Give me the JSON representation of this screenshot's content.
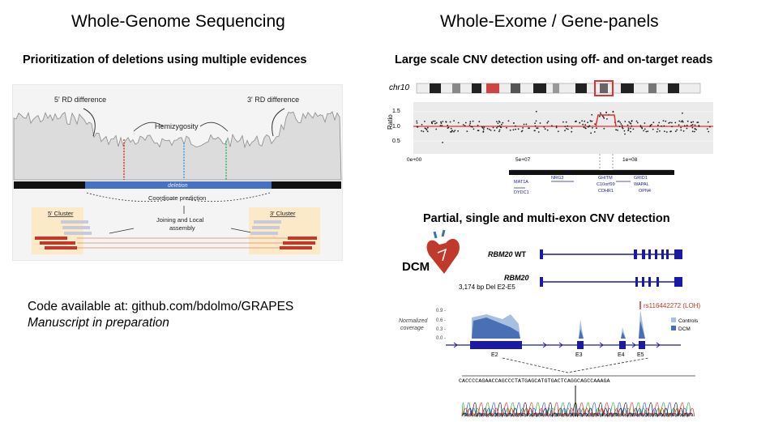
{
  "left": {
    "title": "Whole-Genome Sequencing",
    "subtitle": "Prioritization of deletions using multiple evidences",
    "figure": {
      "rd5": "5' RD difference",
      "rd3": "3' RD difference",
      "hemi": "Hemizygosity",
      "deletion": "deletion",
      "coord": "Coordinate prediction",
      "cluster5": "5' Cluster",
      "cluster3": "3' Cluster",
      "assembly1": "Joining and Local",
      "assembly2": "assembly"
    },
    "code_line": "Code available at: github.com/bdolmo/GRAPES",
    "manuscript": "Manuscript in preparation"
  },
  "right": {
    "title": "Whole-Exome / Gene-panels",
    "subtitle1": "Large scale CNV detection using off- and on-target reads",
    "subtitle2": "Partial, single and multi-exon CNV detection",
    "cnv_plot": {
      "chrom": "chr10",
      "ylabel": "Ratio",
      "yticks": [
        "1.5",
        "1.0",
        "0.5"
      ],
      "xticks": [
        "0e+00",
        "5e+07",
        "1e+08"
      ],
      "genes": [
        "MAT1A",
        "DYDC1",
        "NRG3",
        "GHITM",
        "C10orf99",
        "CDHR1",
        "GRID1",
        "WAPAL",
        "OPN4"
      ]
    },
    "exon_plot": {
      "dcm": "DCM",
      "gene1": "RBM20",
      "wt": " WT",
      "gene2": "RBM20",
      "del": "3,174 bp Del E2-E5",
      "snp": "rs116442272 (LOH)",
      "norm1": "Normalized",
      "norm2": "coverage",
      "yticks": [
        "0.9 -",
        "0.6 -",
        "0.3 -",
        "0.0 -"
      ],
      "legend_controls": "Controls",
      "legend_dcm": "DCM",
      "exons": [
        "E2",
        "E3",
        "E4",
        "E5"
      ],
      "sequence": "CACCCCAGAACCAGCCCTATGAGCATGTGACTCAGGCAGCCAAAGA"
    }
  },
  "colors": {
    "deletion": "#4472c4",
    "gene": "#1a1aa6",
    "ratio": "#e03030",
    "cluster_fill": "#fbe9c8",
    "read": "#c0392b"
  }
}
